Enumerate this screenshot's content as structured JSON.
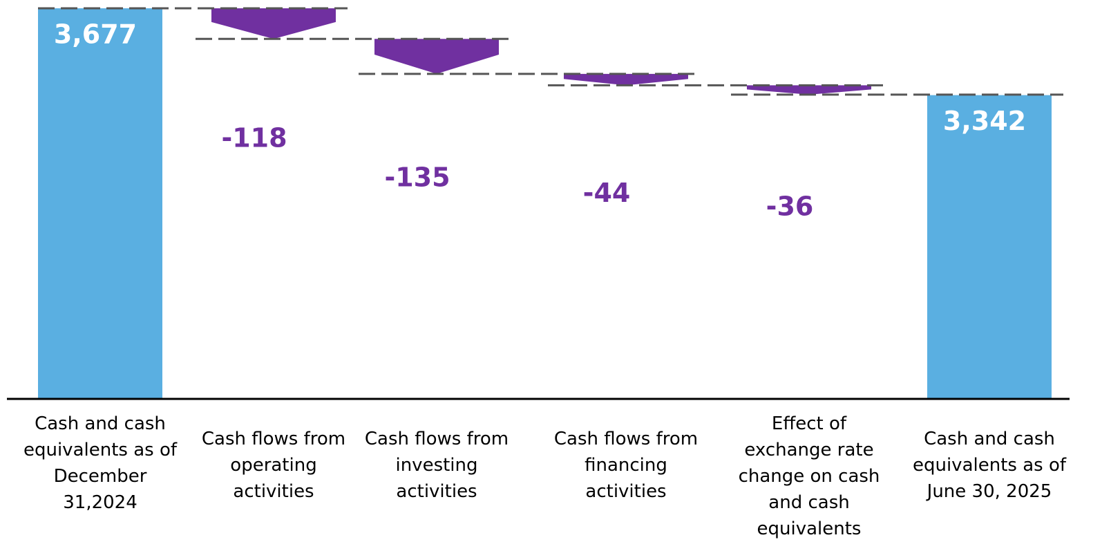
{
  "chart_data": {
    "type": "waterfall",
    "categories": [
      "Cash and cash\nequivalents as of\nDecember\n31,2024",
      "Cash flows from\noperating\nactivities",
      "Cash flows from\ninvesting\nactivities",
      "Cash flows from\nfinancing\nactivities",
      "Effect of\nexchange rate\nchange on cash\nand cash\nequivalents",
      "Cash and cash\nequivalents as of\nJune 30, 2025"
    ],
    "values": [
      3677,
      -118,
      -135,
      -44,
      -36,
      3342
    ],
    "value_labels": [
      "3,677",
      "-118",
      "-135",
      "-44",
      "-36",
      "3,342"
    ],
    "total_color": "#5aafe1",
    "decrease_color": "#7030a0",
    "ylim": [
      2170,
      3709
    ]
  }
}
